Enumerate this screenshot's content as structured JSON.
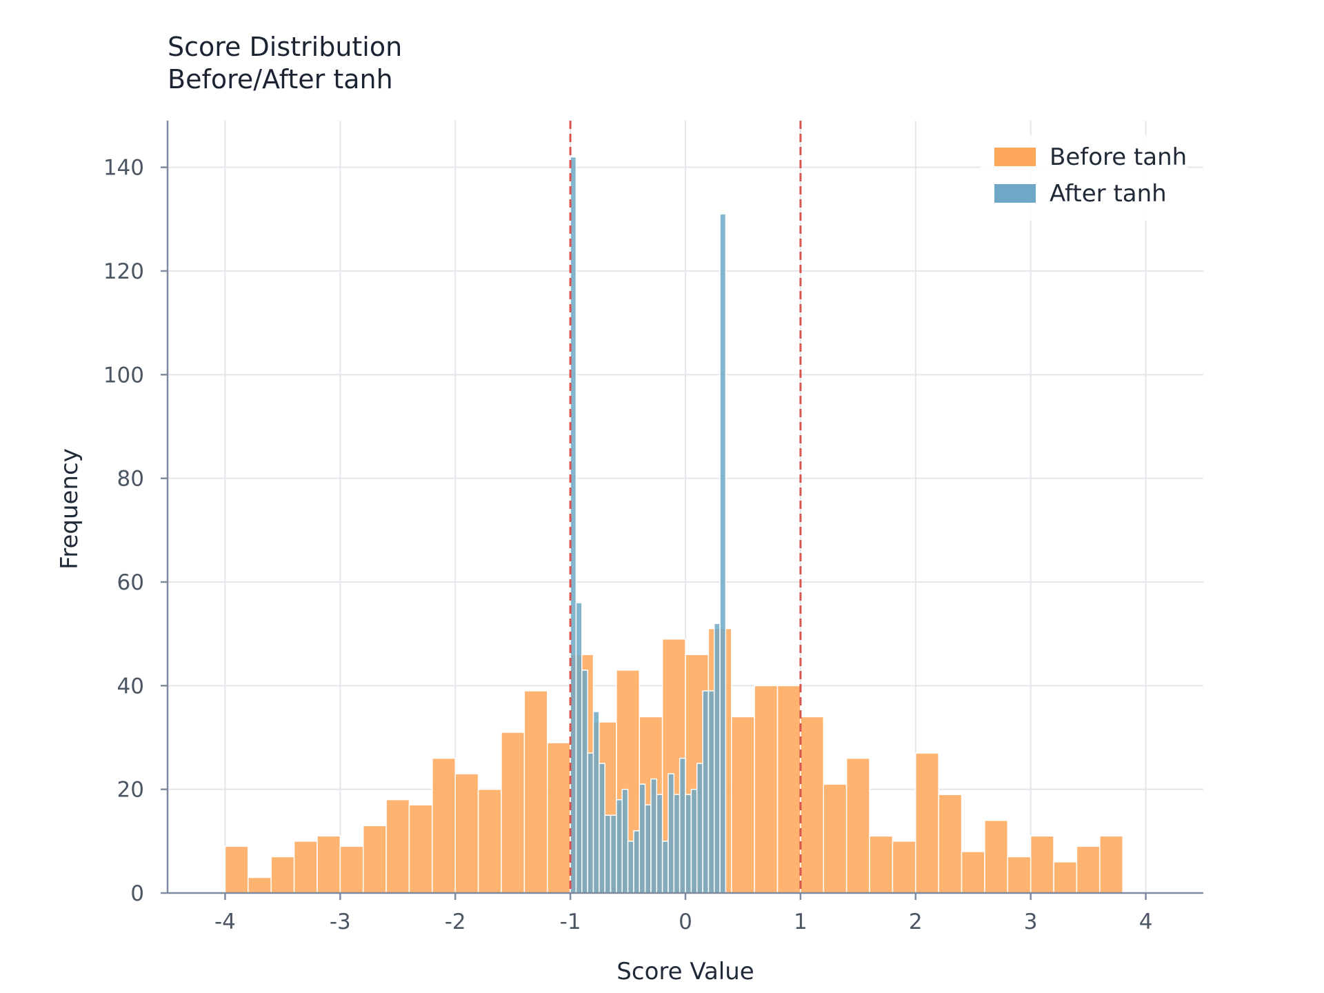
{
  "chart_data": {
    "type": "histogram",
    "title_lines": [
      "Score Distribution",
      "Before/After tanh"
    ],
    "xlabel": "Score Value",
    "ylabel": "Frequency",
    "xlim": [
      -4.5,
      4.5
    ],
    "ylim": [
      0,
      149
    ],
    "x_ticks": [
      {
        "value": -4,
        "label": "-4"
      },
      {
        "value": -3,
        "label": "-3"
      },
      {
        "value": -2,
        "label": "-2"
      },
      {
        "value": -1,
        "label": "-1"
      },
      {
        "value": 0,
        "label": "0"
      },
      {
        "value": 1,
        "label": "1"
      },
      {
        "value": 2,
        "label": "2"
      },
      {
        "value": 3,
        "label": "3"
      },
      {
        "value": 4,
        "label": "4"
      }
    ],
    "y_ticks": [
      {
        "value": 0,
        "label": "0"
      },
      {
        "value": 20,
        "label": "20"
      },
      {
        "value": 40,
        "label": "40"
      },
      {
        "value": 60,
        "label": "60"
      },
      {
        "value": 80,
        "label": "80"
      },
      {
        "value": 100,
        "label": "100"
      },
      {
        "value": 120,
        "label": "120"
      },
      {
        "value": 140,
        "label": "140"
      }
    ],
    "grid": true,
    "legend_position": "top-right",
    "reference_lines": [
      {
        "x": -1,
        "color": "#d9534f",
        "style": "dashed"
      },
      {
        "x": 1,
        "color": "#d9534f",
        "style": "dashed"
      }
    ],
    "series": [
      {
        "name": "Before tanh",
        "color": "#ffa85c",
        "bin_start": -4.0,
        "bin_width": 0.2,
        "counts": [
          9,
          3,
          7,
          10,
          11,
          9,
          13,
          18,
          17,
          26,
          23,
          20,
          31,
          39,
          29,
          46,
          33,
          43,
          34,
          49,
          46,
          51,
          34,
          40,
          40,
          34,
          21,
          26,
          11,
          10,
          27,
          19,
          8,
          14,
          7,
          11,
          6,
          9,
          11,
          0
        ]
      },
      {
        "name": "After tanh",
        "color": "#6fa8c7",
        "bin_start": -1.0,
        "bin_width": 0.05,
        "counts": [
          142,
          56,
          43,
          27,
          35,
          25,
          15,
          15,
          18,
          20,
          10,
          12,
          21,
          17,
          22,
          19,
          10,
          23,
          19,
          26,
          19,
          20,
          25,
          39,
          39,
          52,
          131
        ]
      }
    ]
  }
}
